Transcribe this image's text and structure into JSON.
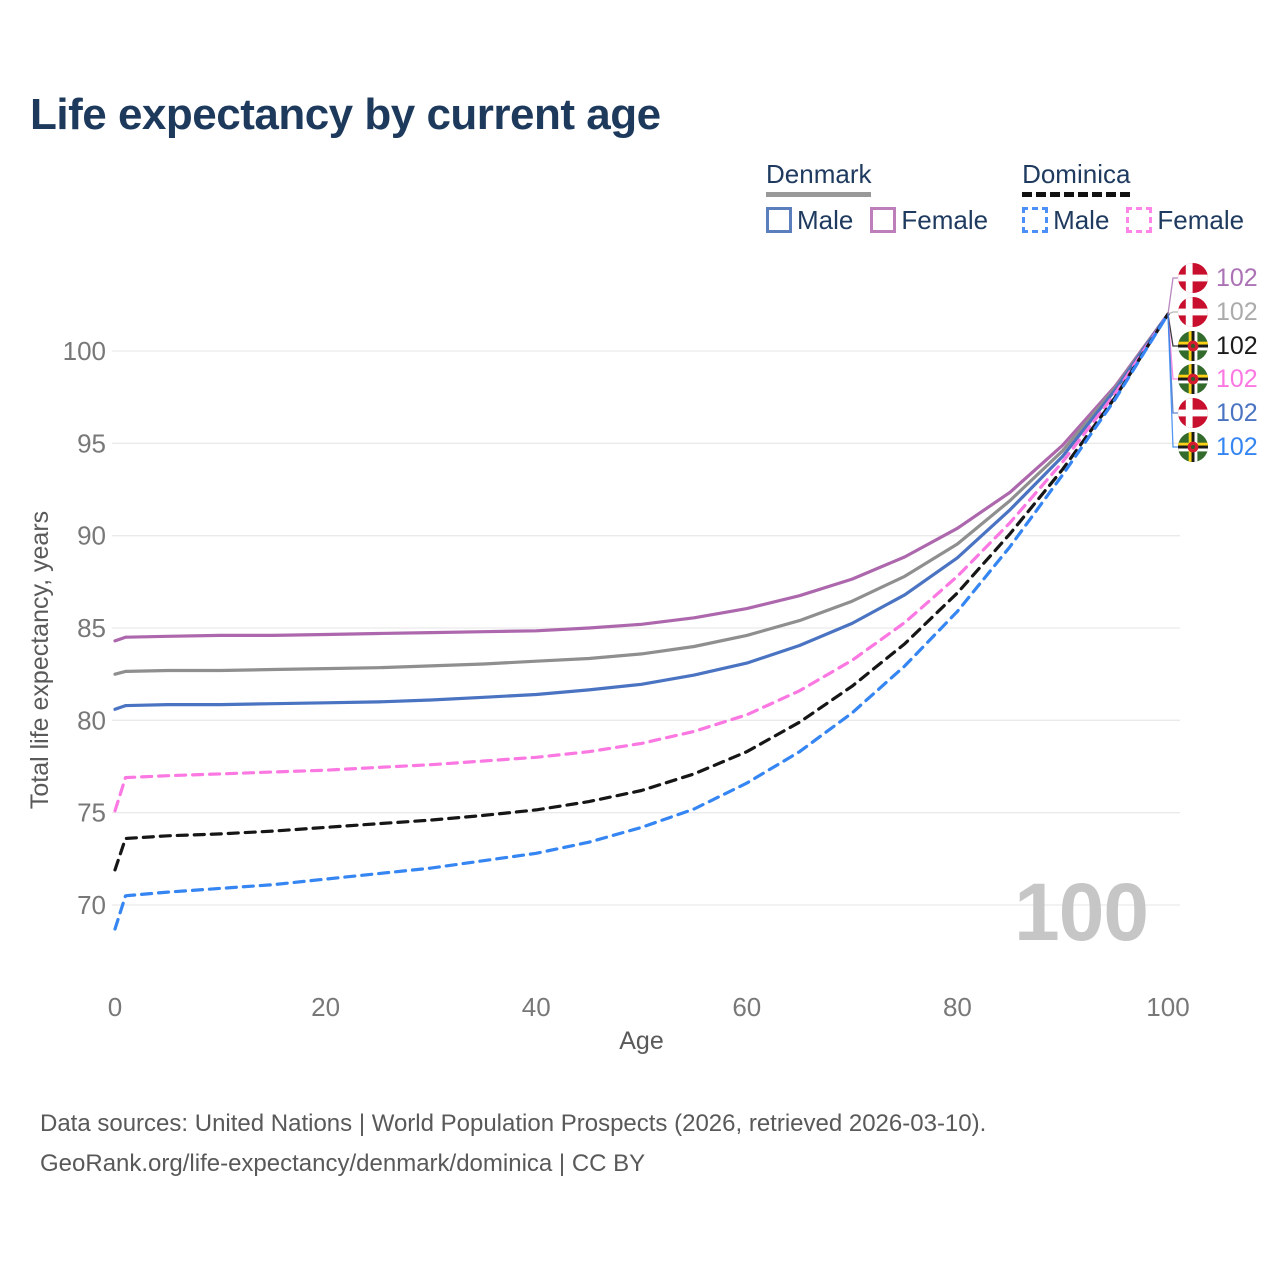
{
  "title": "Life expectancy by current age",
  "age_counter": "100",
  "legend": {
    "groups": [
      {
        "country": "Denmark",
        "underline_color": "#999999",
        "underline_style": "solid",
        "items": [
          {
            "label": "Male",
            "color": "#5b7fbd",
            "dash": false
          },
          {
            "label": "Female",
            "color": "#bc7fba",
            "dash": false
          }
        ]
      },
      {
        "country": "Dominica",
        "underline_color": "#111111",
        "underline_style": "dashed",
        "items": [
          {
            "label": "Male",
            "color": "#4a90f8",
            "dash": true
          },
          {
            "label": "Female",
            "color": "#ff85e8",
            "dash": true
          }
        ]
      }
    ]
  },
  "chart_data": {
    "type": "line",
    "title": "Life expectancy by current age",
    "xlabel": "Age",
    "ylabel": "Total life expectancy, years",
    "xlim": [
      0,
      100
    ],
    "ylim": [
      68,
      103
    ],
    "xticks": [
      0,
      20,
      40,
      60,
      80,
      100
    ],
    "yticks": [
      70,
      75,
      80,
      85,
      90,
      95,
      100
    ],
    "grid": "horizontal",
    "legend_position": "top-right",
    "x": [
      0,
      1,
      5,
      10,
      15,
      20,
      25,
      30,
      35,
      40,
      45,
      50,
      55,
      60,
      65,
      70,
      75,
      80,
      85,
      90,
      95,
      100
    ],
    "series": [
      {
        "name": "Denmark Female",
        "country": "Denmark",
        "sex": "Female",
        "color": "#ad68ad",
        "dash": false,
        "values": [
          84.3,
          84.5,
          84.55,
          84.6,
          84.6,
          84.65,
          84.7,
          84.75,
          84.8,
          84.85,
          85.0,
          85.2,
          85.55,
          86.05,
          86.75,
          87.65,
          88.85,
          90.4,
          92.35,
          94.9,
          98.1,
          102
        ]
      },
      {
        "name": "Denmark Both sexes",
        "country": "Denmark",
        "sex": "Both",
        "color": "#8f8f8f",
        "dash": false,
        "values": [
          82.5,
          82.65,
          82.7,
          82.7,
          82.75,
          82.8,
          82.85,
          82.95,
          83.05,
          83.2,
          83.35,
          83.6,
          84.0,
          84.6,
          85.4,
          86.45,
          87.8,
          89.55,
          91.9,
          94.6,
          98.0,
          102
        ]
      },
      {
        "name": "Denmark Male",
        "country": "Denmark",
        "sex": "Male",
        "color": "#4a73c2",
        "dash": false,
        "values": [
          80.6,
          80.8,
          80.85,
          80.85,
          80.9,
          80.95,
          81.0,
          81.1,
          81.25,
          81.4,
          81.65,
          81.95,
          82.45,
          83.1,
          84.05,
          85.25,
          86.8,
          88.8,
          91.4,
          94.3,
          97.9,
          102
        ]
      },
      {
        "name": "Dominica Female",
        "country": "Dominica",
        "sex": "Female",
        "color": "#fb78e2",
        "dash": true,
        "values": [
          75.1,
          76.9,
          77.0,
          77.1,
          77.2,
          77.3,
          77.45,
          77.6,
          77.8,
          78.0,
          78.3,
          78.75,
          79.4,
          80.3,
          81.6,
          83.25,
          85.3,
          87.8,
          90.7,
          94.0,
          97.7,
          102
        ]
      },
      {
        "name": "Dominica Both sexes",
        "country": "Dominica",
        "sex": "Both",
        "color": "#161616",
        "dash": true,
        "values": [
          71.9,
          73.6,
          73.75,
          73.85,
          74.0,
          74.2,
          74.4,
          74.6,
          74.85,
          75.15,
          75.6,
          76.2,
          77.1,
          78.3,
          79.9,
          81.85,
          84.15,
          86.9,
          90.1,
          93.6,
          97.5,
          102
        ]
      },
      {
        "name": "Dominica Male",
        "country": "Dominica",
        "sex": "Male",
        "color": "#3585f2",
        "dash": true,
        "values": [
          68.7,
          70.5,
          70.7,
          70.9,
          71.1,
          71.4,
          71.7,
          72.0,
          72.4,
          72.8,
          73.4,
          74.2,
          75.2,
          76.6,
          78.3,
          80.4,
          82.95,
          85.9,
          89.4,
          93.3,
          97.4,
          102
        ]
      }
    ]
  },
  "endpoints": [
    {
      "flag": "denmark-flag",
      "value": "102",
      "color": "#ab72b5",
      "series": "Denmark Female"
    },
    {
      "flag": "denmark-flag",
      "value": "102",
      "color": "#ababab",
      "series": "Denmark Both sexes"
    },
    {
      "flag": "dominica-flag",
      "value": "102",
      "color": "#1a1a1a",
      "series": "Dominica Both sexes"
    },
    {
      "flag": "dominica-flag",
      "value": "102",
      "color": "#fb78e2",
      "series": "Dominica Female"
    },
    {
      "flag": "denmark-flag",
      "value": "102",
      "color": "#4a73c2",
      "series": "Denmark Male"
    },
    {
      "flag": "dominica-flag",
      "value": "102",
      "color": "#3585f2",
      "series": "Dominica Male"
    }
  ],
  "footer": {
    "line1": "Data sources: United Nations | World Population Prospects (2026, retrieved 2026-03-10).",
    "line2": "GeoRank.org/life-expectancy/denmark/dominica | CC BY"
  }
}
